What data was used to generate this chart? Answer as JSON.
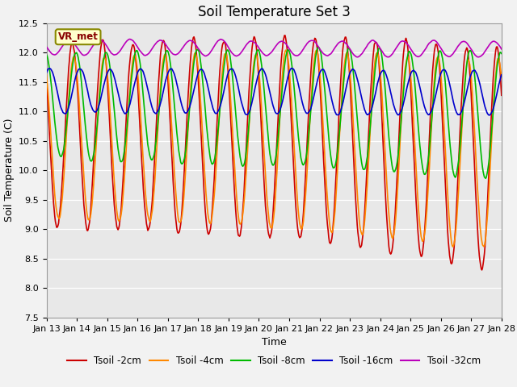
{
  "title": "Soil Temperature Set 3",
  "xlabel": "Time",
  "ylabel": "Soil Temperature (C)",
  "ylim": [
    7.5,
    12.5
  ],
  "x_tick_labels": [
    "Jan 13",
    "Jan 14",
    "Jan 15",
    "Jan 16",
    "Jan 17",
    "Jan 18",
    "Jan 19",
    "Jan 20",
    "Jan 21",
    "Jan 22",
    "Jan 23",
    "Jan 24",
    "Jan 25",
    "Jan 26",
    "Jan 27",
    "Jan 28"
  ],
  "series_colors": [
    "#cc0000",
    "#ff8800",
    "#00bb00",
    "#0000cc",
    "#bb00bb"
  ],
  "series_labels": [
    "Tsoil -2cm",
    "Tsoil -4cm",
    "Tsoil -8cm",
    "Tsoil -16cm",
    "Tsoil -32cm"
  ],
  "legend_box_color": "#ffffcc",
  "legend_box_edge": "#888800",
  "annotation_text": "VR_met",
  "plot_bg_color": "#e8e8e8",
  "line_width": 1.2,
  "title_fontsize": 12,
  "axis_label_fontsize": 9,
  "tick_fontsize": 8
}
